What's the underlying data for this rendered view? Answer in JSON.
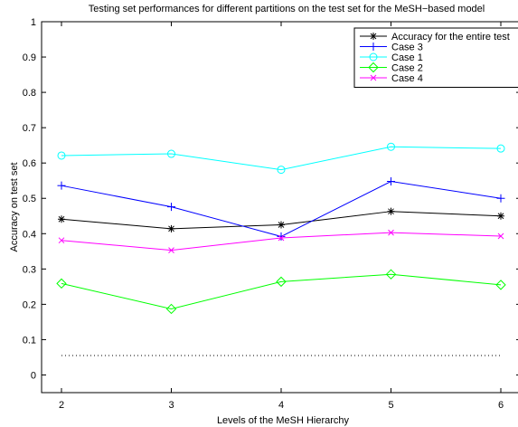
{
  "chart_data": {
    "type": "line",
    "title": "Testing set  performances for different partitions on the test set for the MeSH−based model",
    "xlabel": "Levels of the MeSH Hierarchy",
    "ylabel": "Accuracy on test set",
    "x": [
      2,
      3,
      4,
      5,
      6
    ],
    "xlim": [
      2,
      6
    ],
    "ylim": [
      -0.05,
      1
    ],
    "xticks": [
      "2",
      "3",
      "4",
      "5",
      "6"
    ],
    "yticks": [
      "0",
      "0.1",
      "0.2",
      "0.3",
      "0.4",
      "0.5",
      "0.6",
      "0.7",
      "0.8",
      "0.9",
      "1"
    ],
    "grid": false,
    "legend_position": "top-right",
    "series": [
      {
        "name": "Accuracy for the entire test",
        "values": [
          0.441,
          0.414,
          0.425,
          0.463,
          0.45
        ],
        "color": "#000000",
        "marker": "asterisk"
      },
      {
        "name": "Case 3",
        "values": [
          0.536,
          0.476,
          0.392,
          0.548,
          0.5
        ],
        "color": "#0000ff",
        "marker": "plus"
      },
      {
        "name": "Case 1",
        "values": [
          0.621,
          0.626,
          0.581,
          0.646,
          0.641
        ],
        "color": "#00ffff",
        "marker": "circle"
      },
      {
        "name": "Case 2",
        "values": [
          0.259,
          0.187,
          0.264,
          0.285,
          0.255
        ],
        "color": "#00ff00",
        "marker": "diamond"
      },
      {
        "name": "Case 4",
        "values": [
          0.381,
          0.353,
          0.388,
          0.403,
          0.393
        ],
        "color": "#ff00ff",
        "marker": "x"
      }
    ],
    "reference_line": {
      "value": 0.055,
      "style": "dotted",
      "color": "#000000"
    }
  }
}
